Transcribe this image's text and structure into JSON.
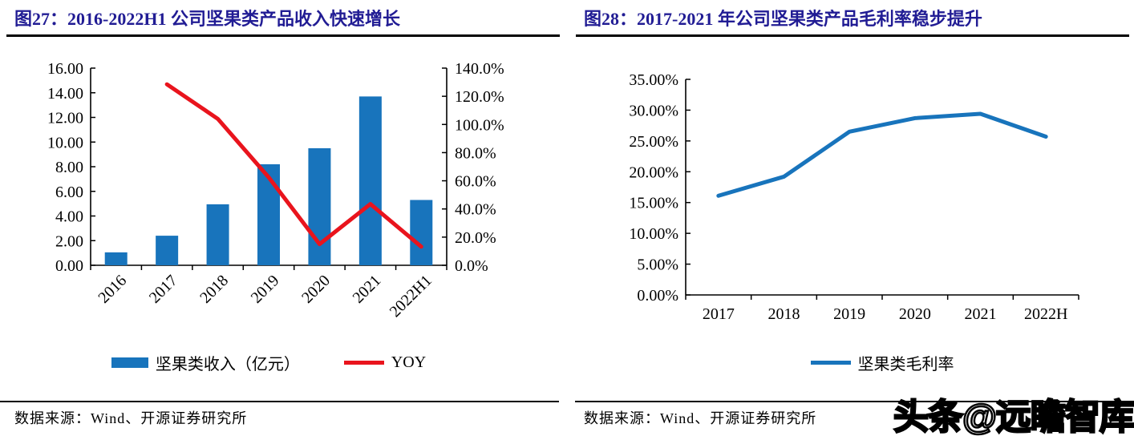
{
  "watermark": {
    "text": "头条@远瞻智库"
  },
  "panels": [
    {
      "title": "图27：2016-2022H1 公司坚果类产品收入快速增长",
      "source": "数据来源：Wind、开源证券研究所",
      "legend": [
        {
          "type": "rect",
          "color": "#1874BC",
          "label": "坚果类收入（亿元）"
        },
        {
          "type": "line",
          "color": "#E9141D",
          "label": "YOY"
        }
      ]
    },
    {
      "title": "图28：2017-2021 年公司坚果类产品毛利率稳步提升",
      "source": "数据来源：Wind、开源证券研究所",
      "legend": [
        {
          "type": "line",
          "color": "#1874BC",
          "label": "坚果类毛利率"
        }
      ]
    }
  ],
  "chart_data": [
    {
      "type": "bar",
      "subtype": "combo-bar-line",
      "title": "图27：2016-2022H1 公司坚果类产品收入快速增长",
      "categories": [
        "2016",
        "2017",
        "2018",
        "2019",
        "2020",
        "2021",
        "2022H1"
      ],
      "series": [
        {
          "name": "坚果类收入（亿元）",
          "type": "bar",
          "axis": "left",
          "color": "#1874BC",
          "values": [
            1.05,
            2.4,
            4.95,
            8.2,
            9.5,
            13.7,
            5.3
          ]
        },
        {
          "name": "YOY",
          "type": "line",
          "axis": "right",
          "color": "#E9141D",
          "values": [
            null,
            128.5,
            104.0,
            62.5,
            15.0,
            43.5,
            13.2
          ]
        }
      ],
      "axes": {
        "left": {
          "min": 0,
          "max": 16,
          "tick_labels": [
            "0.00",
            "2.00",
            "4.00",
            "6.00",
            "8.00",
            "10.00",
            "12.00",
            "14.00",
            "16.00"
          ]
        },
        "right": {
          "min": 0,
          "max": 140,
          "tick_labels": [
            "0.0%",
            "20.0%",
            "40.0%",
            "60.0%",
            "80.0%",
            "100.0%",
            "120.0%",
            "140.0%"
          ]
        }
      },
      "grid": false,
      "legend_position": "bottom",
      "x_label_rotation": -45
    },
    {
      "type": "line",
      "title": "图28：2017-2021 年公司坚果类产品毛利率稳步提升",
      "categories": [
        "2017",
        "2018",
        "2019",
        "2020",
        "2021",
        "2022H"
      ],
      "series": [
        {
          "name": "坚果类毛利率",
          "type": "line",
          "axis": "left",
          "color": "#1874BC",
          "values": [
            16.1,
            19.2,
            26.5,
            28.7,
            29.4,
            25.7
          ]
        }
      ],
      "axes": {
        "left": {
          "min": 0,
          "max": 35,
          "tick_labels": [
            "0.00%",
            "5.00%",
            "10.00%",
            "15.00%",
            "20.00%",
            "25.00%",
            "30.00%",
            "35.00%"
          ]
        }
      },
      "grid": false,
      "legend_position": "bottom",
      "x_label_rotation": 0
    }
  ]
}
